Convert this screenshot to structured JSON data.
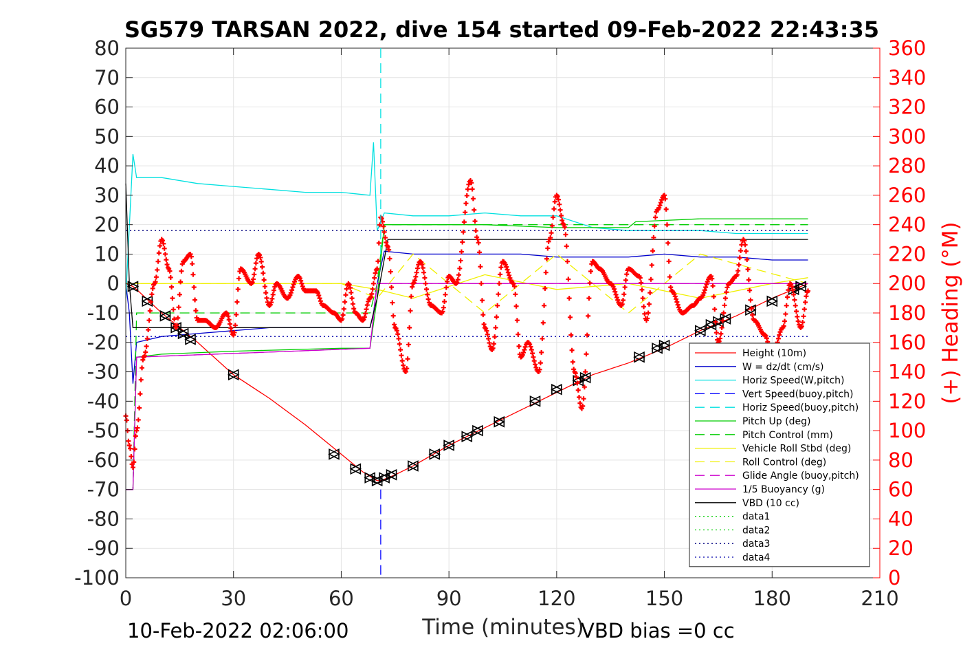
{
  "chart_data": {
    "type": "line",
    "title": "SG579 TARSAN 2022, dive 154 started 09-Feb-2022 22:43:35",
    "xlabel": "Time (minutes)",
    "ylabel_right": "(+) Heading (°M)",
    "xlim": [
      0,
      210
    ],
    "ylim": [
      -100,
      80
    ],
    "ylim_right": [
      0,
      360
    ],
    "xticks": [
      "0",
      "30",
      "60",
      "90",
      "120",
      "150",
      "180",
      "210"
    ],
    "yticks": [
      "80",
      "70",
      "60",
      "50",
      "40",
      "30",
      "20",
      "10",
      "0",
      "-10",
      "-20",
      "-30",
      "-40",
      "-50",
      "-60",
      "-70",
      "-80",
      "-90",
      "-100"
    ],
    "yticks_right": [
      "360",
      "340",
      "320",
      "300",
      "280",
      "260",
      "240",
      "220",
      "200",
      "180",
      "160",
      "140",
      "120",
      "100",
      "80",
      "60",
      "40",
      "20",
      "0"
    ],
    "grid": true,
    "legend_position": "lower-right",
    "annotations": {
      "end_time": "10-Feb-2022 02:06:00",
      "vbd_bias": "VBD bias =0 cc"
    },
    "apogee_time": 71,
    "series": [
      {
        "name": "Height (10m)",
        "color": "#ff0000",
        "style": "solid",
        "x": [
          0,
          2,
          3,
          10,
          20,
          30,
          40,
          50,
          60,
          66,
          70,
          71,
          75,
          80,
          90,
          100,
          110,
          120,
          130,
          140,
          150,
          160,
          170,
          180,
          188,
          190
        ],
        "y": [
          0,
          -1,
          -2,
          -10,
          -20,
          -31,
          -39,
          -48,
          -58,
          -64,
          -67,
          -67,
          -65,
          -62,
          -55,
          -49,
          -43,
          -37,
          -31,
          -27,
          -22,
          -16,
          -11,
          -5,
          -1,
          0
        ]
      },
      {
        "name": "W = dz/dt (cm/s)",
        "color": "#0000cc",
        "style": "solid",
        "x": [
          0,
          1,
          2,
          3,
          10,
          20,
          30,
          40,
          50,
          60,
          68,
          69,
          70,
          72,
          80,
          90,
          100,
          110,
          120,
          130,
          140,
          150,
          160,
          170,
          180,
          190
        ],
        "y": [
          0,
          -10,
          -34,
          -20,
          -18,
          -17,
          -16,
          -15,
          -15,
          -15,
          -15,
          -10,
          0,
          11,
          10,
          10,
          10,
          10,
          9,
          9,
          9,
          10,
          9,
          9,
          8,
          8
        ]
      },
      {
        "name": "Horiz Speed(W,pitch)",
        "color": "#00e0e0",
        "style": "solid",
        "x": [
          0,
          2,
          3,
          10,
          20,
          30,
          40,
          50,
          60,
          68,
          69,
          70,
          72,
          80,
          90,
          100,
          110,
          120,
          130,
          140,
          150,
          160,
          170,
          180,
          190
        ],
        "y": [
          -5,
          44,
          36,
          36,
          34,
          33,
          32,
          31,
          31,
          30,
          48,
          18,
          24,
          23,
          23,
          24,
          23,
          23,
          19,
          18,
          18,
          18,
          17,
          17,
          17
        ]
      },
      {
        "name": "Vert Speed(buoy,pitch)",
        "color": "#0000ff",
        "style": "dashed",
        "x": [],
        "y": []
      },
      {
        "name": "Horiz Speed(buoy,pitch)",
        "color": "#00e0e0",
        "style": "dashed",
        "x": [],
        "y": []
      },
      {
        "name": "Pitch Up (deg)",
        "color": "#00cc00",
        "style": "solid",
        "x": [
          0,
          2,
          3,
          10,
          30,
          60,
          68,
          70,
          72,
          80,
          100,
          120,
          140,
          142,
          160,
          190
        ],
        "y": [
          -70,
          -70,
          -25,
          -24,
          -23,
          -22,
          -22,
          -5,
          20,
          20,
          20,
          19,
          19,
          21,
          22,
          22
        ]
      },
      {
        "name": "Pitch Control (mm)",
        "color": "#00cc00",
        "style": "dashed",
        "x": [
          0,
          2,
          3,
          68,
          70,
          72,
          190
        ],
        "y": [
          -70,
          -70,
          -10,
          -10,
          0,
          20,
          20
        ]
      },
      {
        "name": "Vehicle Roll Stbd (deg)",
        "color": "#f0f000",
        "style": "solid",
        "x": [
          0,
          10,
          30,
          50,
          60,
          70,
          80,
          100,
          120,
          140,
          160,
          180,
          190
        ],
        "y": [
          0,
          0,
          0,
          0,
          0,
          -2,
          -5,
          3,
          -2,
          0,
          -5,
          0,
          2
        ]
      },
      {
        "name": "Roll Control (deg)",
        "color": "#f0f000",
        "style": "dashed",
        "x": [
          0,
          10,
          30,
          60,
          70,
          80,
          100,
          120,
          140,
          160,
          190
        ],
        "y": [
          0,
          0,
          0,
          0,
          -5,
          10,
          -10,
          10,
          -10,
          10,
          0
        ]
      },
      {
        "name": "Glide Angle (buoy,pitch)",
        "color": "#cc00cc",
        "style": "dashed",
        "x": [
          0,
          2,
          3,
          68,
          70,
          72,
          190
        ],
        "y": [
          -70,
          -70,
          -25,
          -22,
          0,
          0,
          0
        ]
      },
      {
        "name": "1/5 Buoyancy (g)",
        "color": "#cc00cc",
        "style": "solid",
        "x": [
          0,
          2,
          3,
          68,
          70,
          72,
          190
        ],
        "y": [
          -70,
          -70,
          -25,
          -22,
          0,
          0,
          0
        ]
      },
      {
        "name": "VBD (10 cc)",
        "color": "#000000",
        "style": "solid",
        "x": [
          0,
          1,
          2,
          3,
          68,
          69,
          70,
          73,
          190
        ],
        "y": [
          34,
          0,
          -15,
          -15,
          -15,
          -10,
          -5,
          15,
          15
        ]
      },
      {
        "name": "data1",
        "color": "#00cc00",
        "style": "dotted",
        "x": [],
        "y": []
      },
      {
        "name": "data2",
        "color": "#00cc00",
        "style": "dotted",
        "x": [],
        "y": []
      },
      {
        "name": "data3",
        "color": "#000080",
        "style": "dotted",
        "x": [
          0,
          190
        ],
        "y": [
          18,
          18
        ]
      },
      {
        "name": "data4",
        "color": "#0000aa",
        "style": "dotted",
        "x": [
          0,
          190
        ],
        "y": [
          -18,
          -18
        ]
      }
    ],
    "heading_series": {
      "name": "Heading",
      "color": "#ff0000",
      "marker": "+",
      "x": [
        0,
        1,
        2,
        3,
        5,
        8,
        10,
        12,
        14,
        16,
        18,
        20,
        22,
        25,
        28,
        30,
        32,
        35,
        37,
        40,
        42,
        45,
        48,
        50,
        53,
        55,
        58,
        60,
        62,
        64,
        66,
        68,
        70,
        71,
        73,
        75,
        78,
        80,
        82,
        85,
        88,
        90,
        92,
        96,
        98,
        100,
        102,
        105,
        108,
        110,
        112,
        115,
        118,
        120,
        122,
        125,
        127,
        130,
        132,
        135,
        138,
        140,
        143,
        145,
        148,
        150,
        152,
        155,
        158,
        160,
        163,
        165,
        168,
        170,
        172,
        175,
        178,
        180,
        183,
        185,
        188,
        190
      ],
      "y": [
        110,
        90,
        75,
        100,
        150,
        200,
        230,
        210,
        170,
        215,
        220,
        175,
        175,
        170,
        180,
        165,
        210,
        200,
        220,
        185,
        200,
        190,
        205,
        195,
        195,
        185,
        180,
        175,
        200,
        180,
        175,
        190,
        210,
        245,
        225,
        170,
        140,
        200,
        215,
        185,
        180,
        205,
        200,
        270,
        230,
        170,
        155,
        215,
        200,
        150,
        160,
        140,
        230,
        260,
        240,
        140,
        115,
        215,
        210,
        200,
        185,
        210,
        205,
        175,
        250,
        260,
        195,
        180,
        185,
        190,
        205,
        160,
        200,
        205,
        230,
        175,
        165,
        150,
        170,
        200,
        170,
        195
      ]
    },
    "markers": {
      "x": [
        2,
        6,
        11,
        14,
        16,
        18,
        30,
        58,
        64,
        68,
        70,
        72,
        74,
        80,
        86,
        90,
        95,
        98,
        104,
        114,
        120,
        126,
        128,
        143,
        148,
        150,
        160,
        163,
        165,
        167,
        174,
        180,
        186,
        188
      ],
      "y": [
        -1,
        -6,
        -11,
        -15,
        -17,
        -19,
        -31,
        -58,
        -63,
        -66,
        -67,
        -66,
        -65,
        -62,
        -58,
        -55,
        -52,
        -50,
        -47,
        -40,
        -36,
        -33,
        -32,
        -25,
        -22,
        -21,
        -16,
        -14,
        -13,
        -12,
        -9,
        -6,
        -2,
        -1
      ]
    }
  }
}
